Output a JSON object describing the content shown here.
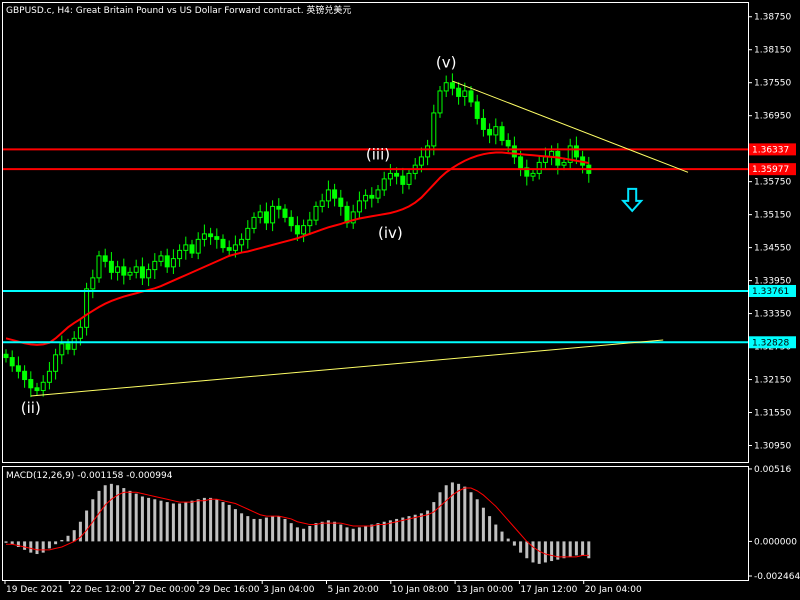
{
  "header": {
    "title": "GBPUSD.c, H4:  Great Britain Pound vs US Dollar Forward contract. 英镑兑美元"
  },
  "colors": {
    "background": "#000000",
    "candle": "#00ff00",
    "ma": "#ff0000",
    "resistance": "#ff0000",
    "support": "#00ffff",
    "trendline": "#ffff66",
    "macd_hist": "#c0c0c0",
    "macd_signal": "#ff0000",
    "arrow": "#00e5ff"
  },
  "chart_data": [
    {
      "type": "candlestick",
      "symbol": "GBPUSD.c",
      "timeframe": "H4",
      "ylim": [
        1.3065,
        1.39
      ],
      "y_ticks": [
        "1.38750",
        "1.38150",
        "1.37550",
        "1.36950",
        "1.35750",
        "1.35150",
        "1.34550",
        "1.33950",
        "1.33350",
        "1.32750",
        "1.32150",
        "1.31550",
        "1.30950"
      ],
      "x_ticks": [
        "19 Dec 2021",
        "22 Dec 12:00",
        "27 Dec 00:00",
        "29 Dec 16:00",
        "3 Jan 04:00",
        "5 Jan 20:00",
        "10 Jan 08:00",
        "13 Jan 00:00",
        "17 Jan 12:00",
        "20 Jan 04:00"
      ],
      "close_series": [
        1.3255,
        1.324,
        1.323,
        1.3215,
        1.32,
        1.3195,
        1.321,
        1.323,
        1.326,
        1.328,
        1.327,
        1.329,
        1.331,
        1.338,
        1.34,
        1.344,
        1.343,
        1.341,
        1.342,
        1.3405,
        1.341,
        1.342,
        1.34,
        1.3415,
        1.343,
        1.344,
        1.342,
        1.3435,
        1.345,
        1.346,
        1.3445,
        1.347,
        1.348,
        1.3475,
        1.347,
        1.3455,
        1.345,
        1.346,
        1.347,
        1.349,
        1.351,
        1.352,
        1.35,
        1.353,
        1.3525,
        1.351,
        1.3495,
        1.348,
        1.3495,
        1.3505,
        1.353,
        1.354,
        1.356,
        1.3545,
        1.353,
        1.35,
        1.352,
        1.354,
        1.355,
        1.3545,
        1.356,
        1.358,
        1.359,
        1.3585,
        1.357,
        1.359,
        1.3605,
        1.362,
        1.364,
        1.37,
        1.374,
        1.3755,
        1.3745,
        1.373,
        1.374,
        1.372,
        1.369,
        1.367,
        1.366,
        1.3675,
        1.365,
        1.364,
        1.362,
        1.36,
        1.3585,
        1.359,
        1.361,
        1.362,
        1.363,
        1.3605,
        1.361,
        1.364,
        1.362,
        1.3605,
        1.359
      ],
      "ma_series": [
        1.329,
        1.3287,
        1.3284,
        1.3281,
        1.3279,
        1.3278,
        1.3279,
        1.3282,
        1.329,
        1.33,
        1.331,
        1.3318,
        1.3325,
        1.3333,
        1.334,
        1.3347,
        1.3353,
        1.3358,
        1.3362,
        1.3366,
        1.3369,
        1.3372,
        1.3375,
        1.3378,
        1.3381,
        1.3385,
        1.339,
        1.3395,
        1.34,
        1.3405,
        1.341,
        1.3415,
        1.342,
        1.3425,
        1.343,
        1.3435,
        1.344,
        1.3443,
        1.3446,
        1.3448,
        1.3451,
        1.3454,
        1.3457,
        1.346,
        1.3463,
        1.3466,
        1.3469,
        1.3472,
        1.3476,
        1.348,
        1.3484,
        1.3488,
        1.3492,
        1.3495,
        1.3498,
        1.3502,
        1.3505,
        1.3508,
        1.351,
        1.3512,
        1.3514,
        1.3516,
        1.3518,
        1.3521,
        1.3525,
        1.353,
        1.3537,
        1.3546,
        1.3558,
        1.357,
        1.3582,
        1.3592,
        1.36,
        1.3607,
        1.3613,
        1.3618,
        1.3622,
        1.3625,
        1.3627,
        1.3628,
        1.3628,
        1.3627,
        1.3626,
        1.3625,
        1.3624,
        1.3623,
        1.3622,
        1.3621,
        1.362,
        1.3619,
        1.3617,
        1.3615,
        1.3613,
        1.3611,
        1.3609
      ],
      "horizontal_levels": [
        {
          "name": "resistance-upper",
          "value": "1.36337",
          "color": "#ff0000"
        },
        {
          "name": "resistance-lower",
          "value": "1.35977",
          "color": "#ff0000"
        },
        {
          "name": "support-upper",
          "value": "1.33761",
          "color": "#00ffff"
        },
        {
          "name": "support-lower",
          "value": "1.32828",
          "color": "#00ffff"
        }
      ],
      "wave_labels": [
        {
          "text": "(ii)",
          "index": 4,
          "value": 1.318,
          "pos": "below"
        },
        {
          "text": "(iii)",
          "index": 60,
          "value": 1.3608,
          "pos": "above"
        },
        {
          "text": "(iv)",
          "index": 62,
          "value": 1.3498,
          "pos": "below"
        },
        {
          "text": "(v)",
          "index": 71,
          "value": 1.3775,
          "pos": "above"
        }
      ],
      "trendlines": [
        {
          "from_index": 4,
          "from_value": 1.3185,
          "to_index": 106,
          "to_value": 1.3287
        },
        {
          "from_index": 72,
          "from_value": 1.3758,
          "to_index": 110,
          "to_value": 1.3592
        }
      ],
      "arrow": {
        "direction": "down",
        "index": 101,
        "value": 1.354
      }
    },
    {
      "type": "bar",
      "indicator": "MACD",
      "header": "MACD(12,26,9) -0.001158 -0.000994",
      "ylim": [
        -0.00275,
        0.0053
      ],
      "y_ticks": [
        "0.00516",
        "0.000000",
        "-0.002464"
      ],
      "histogram": [
        -0.0001,
        -0.0002,
        -0.0004,
        -0.0006,
        -0.0008,
        -0.0009,
        -0.0008,
        -0.0005,
        -0.0002,
        0.0001,
        0.0004,
        0.0008,
        0.0014,
        0.0022,
        0.003,
        0.0036,
        0.004,
        0.0041,
        0.004,
        0.0038,
        0.0036,
        0.0034,
        0.0032,
        0.0031,
        0.003,
        0.0029,
        0.0028,
        0.0027,
        0.0027,
        0.0028,
        0.0029,
        0.003,
        0.0031,
        0.0031,
        0.003,
        0.0028,
        0.0026,
        0.0023,
        0.002,
        0.0018,
        0.0016,
        0.0016,
        0.0017,
        0.0018,
        0.0018,
        0.0016,
        0.0013,
        0.001,
        0.0009,
        0.0011,
        0.0013,
        0.0014,
        0.0015,
        0.0014,
        0.0012,
        0.001,
        0.0009,
        0.001,
        0.0011,
        0.0012,
        0.0013,
        0.0014,
        0.0015,
        0.0016,
        0.0017,
        0.0018,
        0.0019,
        0.002,
        0.0022,
        0.0028,
        0.0035,
        0.004,
        0.0042,
        0.0041,
        0.0039,
        0.0035,
        0.003,
        0.0024,
        0.0018,
        0.0012,
        0.0007,
        0.0002,
        -0.0003,
        -0.0008,
        -0.0012,
        -0.0015,
        -0.0016,
        -0.0015,
        -0.0014,
        -0.0013,
        -0.0012,
        -0.0011,
        -0.001,
        -0.001,
        -0.0012
      ],
      "signal": [
        -0.0002,
        -0.0002,
        -0.0003,
        -0.0004,
        -0.0005,
        -0.0006,
        -0.0006,
        -0.0006,
        -0.0005,
        -0.0004,
        -0.0002,
        0.0,
        0.0003,
        0.0008,
        0.0014,
        0.002,
        0.0026,
        0.003,
        0.0033,
        0.0035,
        0.0035,
        0.0035,
        0.0034,
        0.0033,
        0.0032,
        0.0031,
        0.003,
        0.0029,
        0.0028,
        0.0028,
        0.0028,
        0.0029,
        0.0029,
        0.003,
        0.003,
        0.0029,
        0.0028,
        0.0027,
        0.0025,
        0.0023,
        0.0021,
        0.0019,
        0.0018,
        0.0018,
        0.0018,
        0.0017,
        0.0016,
        0.0014,
        0.0013,
        0.0012,
        0.0012,
        0.0013,
        0.0013,
        0.0013,
        0.0013,
        0.0012,
        0.0011,
        0.0011,
        0.0011,
        0.0011,
        0.0012,
        0.0012,
        0.0013,
        0.0014,
        0.0015,
        0.0016,
        0.0017,
        0.0018,
        0.0019,
        0.0021,
        0.0025,
        0.0029,
        0.0033,
        0.0036,
        0.0038,
        0.0038,
        0.0036,
        0.0033,
        0.0029,
        0.0025,
        0.002,
        0.0015,
        0.001,
        0.0005,
        0.0,
        -0.0004,
        -0.0007,
        -0.0009,
        -0.001,
        -0.0011,
        -0.0011,
        -0.0011,
        -0.0011,
        -0.001,
        -0.001
      ]
    }
  ]
}
